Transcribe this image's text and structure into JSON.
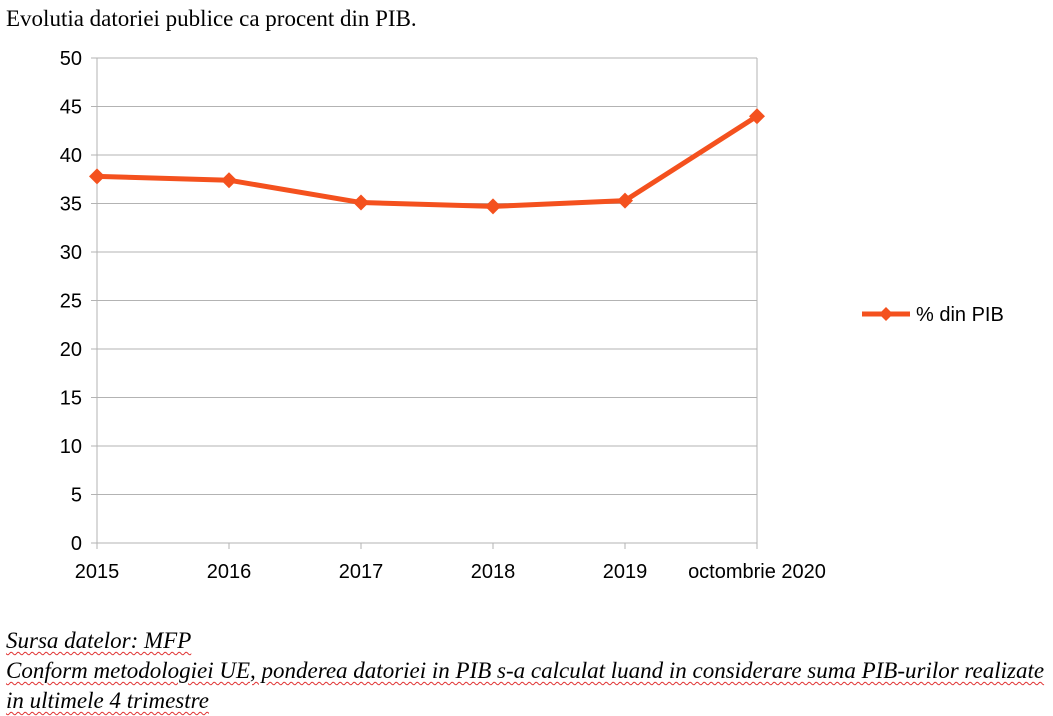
{
  "page": {
    "title": "Evolutia datoriei publice ca procent din PIB.",
    "source": "Sursa datelor: MFP",
    "methodology_note": "Conform metodologiei UE, ponderea datoriei in PIB s-a calculat luand in considerare suma PIB-urilor realizate in ultimele 4 trimestre"
  },
  "chart_data": {
    "type": "line",
    "categories": [
      "2015",
      "2016",
      "2017",
      "2018",
      "2019",
      "octombrie 2020"
    ],
    "series": [
      {
        "name": "% din PIB",
        "values": [
          37.8,
          37.4,
          35.1,
          34.7,
          35.3,
          44.0
        ],
        "color": "#f4511e",
        "marker": "diamond"
      }
    ],
    "ylim": [
      0,
      50
    ],
    "yticks": [
      0,
      5,
      10,
      15,
      20,
      25,
      30,
      35,
      40,
      45,
      50
    ],
    "grid": true,
    "legend": "right",
    "colors": {
      "grid": "#b3b3b3",
      "line": "#f4511e"
    }
  }
}
